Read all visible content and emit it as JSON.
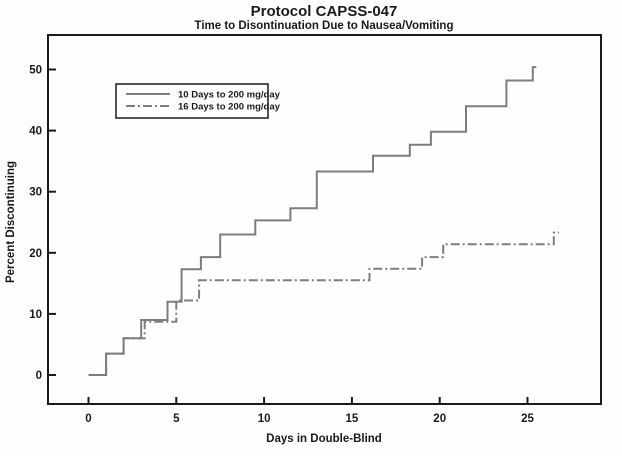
{
  "chart_data": {
    "type": "line",
    "step": true,
    "title": "Protocol CAPSS-047",
    "subtitle": "Time to Disontinuation Due to Nausea/Vomiting",
    "xlabel": "Days in Double-Blind",
    "ylabel": "Percent Discontinuing",
    "xlim": [
      -2.3,
      29.2
    ],
    "ylim": [
      -4.8,
      55.6
    ],
    "xticks": [
      0,
      5,
      10,
      15,
      20,
      25
    ],
    "yticks": [
      0,
      10,
      20,
      30,
      40,
      50
    ],
    "grid": false,
    "legend_position": "upper-left-inside",
    "line_color": "#7d7d7d",
    "axis_color": "#1a1a1a",
    "series": [
      {
        "name": "10 Days to 200 mg/day",
        "style": "solid",
        "steps": [
          [
            0,
            0
          ],
          [
            1,
            3.5
          ],
          [
            2,
            6
          ],
          [
            3,
            9
          ],
          [
            4.5,
            12
          ],
          [
            5.3,
            17.3
          ],
          [
            6.4,
            19.3
          ],
          [
            7.5,
            23
          ],
          [
            9.5,
            25.3
          ],
          [
            11.5,
            27.3
          ],
          [
            13,
            33.3
          ],
          [
            16.2,
            35.9
          ],
          [
            18.3,
            37.7
          ],
          [
            19.5,
            39.8
          ],
          [
            21.5,
            44
          ],
          [
            23.8,
            48.2
          ],
          [
            25.3,
            50.4
          ]
        ],
        "end_day": 25.5
      },
      {
        "name": "16 Days to 200 mg/day",
        "style": "dash-dot",
        "steps": [
          [
            0,
            0
          ],
          [
            1,
            3.5
          ],
          [
            2,
            6
          ],
          [
            3.2,
            8.7
          ],
          [
            5,
            12.2
          ],
          [
            6.3,
            15.5
          ],
          [
            16,
            17.4
          ],
          [
            19,
            19.3
          ],
          [
            20.2,
            21.4
          ],
          [
            26.5,
            23.3
          ]
        ],
        "end_day": 26.8
      }
    ]
  }
}
